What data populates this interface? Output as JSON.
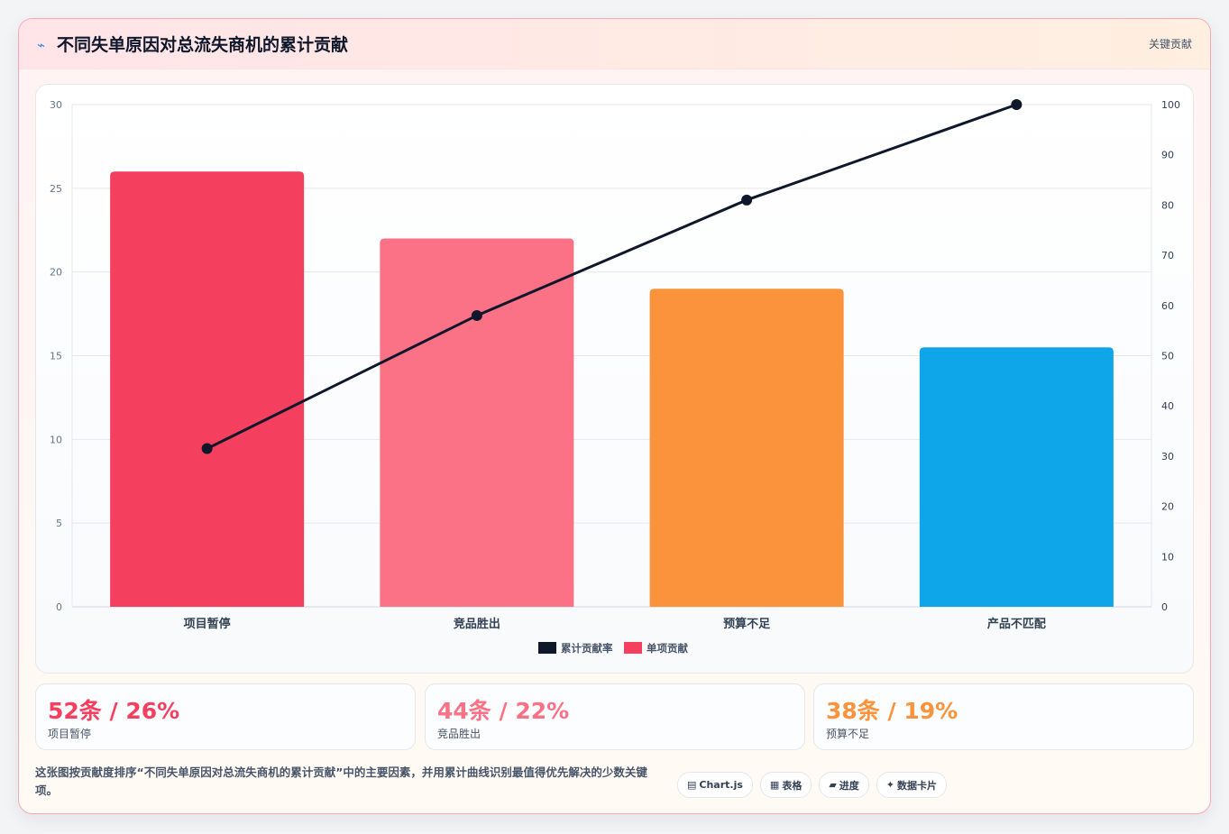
{
  "header": {
    "title": "不同失单原因对总流失商机的累计贡献",
    "tag": "关键贡献"
  },
  "chart_data": {
    "type": "bar",
    "categories": [
      "项目暂停",
      "竞品胜出",
      "预算不足",
      "产品不匹配"
    ],
    "series": [
      {
        "name": "单项贡献",
        "type": "bar",
        "axis": "left",
        "values": [
          26,
          22,
          19,
          15.5
        ],
        "colors": [
          "#f43f5e",
          "#fb7185",
          "#fb923c",
          "#0ea5e9"
        ]
      },
      {
        "name": "累计贡献率",
        "type": "line",
        "axis": "right",
        "values": [
          31.5,
          58,
          81,
          100
        ],
        "color": "#0f172a"
      }
    ],
    "y_left": {
      "ylim": [
        0,
        30
      ],
      "ticks": [
        "0",
        "5",
        "10",
        "15",
        "20",
        "25",
        "30"
      ]
    },
    "y_right": {
      "ylim": [
        0,
        100
      ],
      "ticks": [
        "0",
        "10",
        "20",
        "30",
        "40",
        "50",
        "60",
        "70",
        "80",
        "90",
        "100"
      ]
    },
    "legend": [
      "累计贡献率",
      "单项贡献"
    ],
    "legend_position": "bottom",
    "grid": true
  },
  "stats": [
    {
      "value": "52条 / 26%",
      "label": "项目暂停",
      "color": "#f43f5e"
    },
    {
      "value": "44条 / 22%",
      "label": "竞品胜出",
      "color": "#fb7185"
    },
    {
      "value": "38条 / 19%",
      "label": "预算不足",
      "color": "#fb923c"
    }
  ],
  "description": "这张图按贡献度排序“不同失单原因对总流失商机的累计贡献”中的主要因素，并用累计曲线识别最值得优先解决的少数关键项。",
  "chips": [
    {
      "icon": "▤",
      "icon_name": "chart-icon",
      "label": "Chart.js"
    },
    {
      "icon": "▦",
      "icon_name": "table-icon",
      "label": "表格"
    },
    {
      "icon": "▰",
      "icon_name": "progress-icon",
      "label": "进度"
    },
    {
      "icon": "✦",
      "icon_name": "sparkle-icon",
      "label": "数据卡片"
    }
  ]
}
